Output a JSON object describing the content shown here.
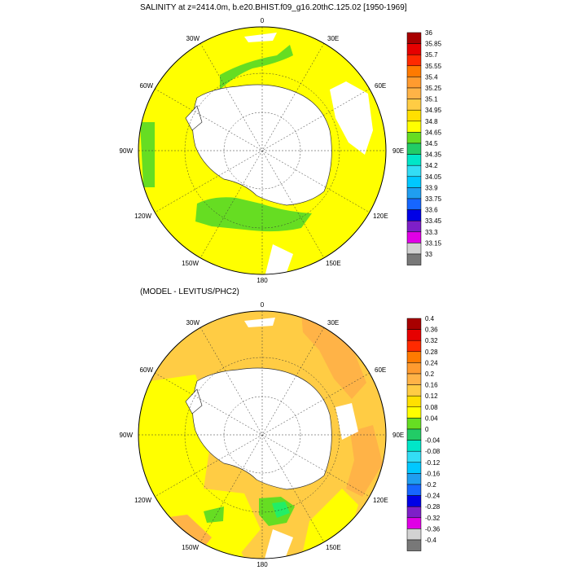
{
  "top_panel": {
    "title": "SALINITY at z=2414.0m, b.e20.BHIST.f09_g16.20thC.125.02 [1950-1969]",
    "lon_labels": [
      "0",
      "30E",
      "60E",
      "90E",
      "120E",
      "150E",
      "180",
      "150W",
      "120W",
      "90W",
      "60W",
      "30W"
    ],
    "colorbar_labels": [
      "36",
      "35.85",
      "35.7",
      "35.55",
      "35.4",
      "35.25",
      "35.1",
      "34.95",
      "34.8",
      "34.65",
      "34.5",
      "34.35",
      "34.2",
      "34.05",
      "33.9",
      "33.75",
      "33.6",
      "33.45",
      "33.3",
      "33.15",
      "33"
    ],
    "colorbar_colors": [
      "#a80000",
      "#e60000",
      "#ff2a00",
      "#ff7a00",
      "#ff9b2f",
      "#ffb347",
      "#ffcc44",
      "#ffe000",
      "#ffff00",
      "#66dd22",
      "#22cc66",
      "#00e6c8",
      "#33ddf5",
      "#00c8ff",
      "#1f9ef0",
      "#1666ff",
      "#0000e6",
      "#7e1fc8",
      "#e000e6",
      "#d2d2d2",
      "#787878"
    ]
  },
  "bottom_panel": {
    "title": "(MODEL - LEVITUS/PHC2)",
    "lon_labels": [
      "0",
      "30E",
      "60E",
      "90E",
      "120E",
      "150E",
      "180",
      "150W",
      "120W",
      "90W",
      "60W",
      "30W"
    ],
    "colorbar_labels": [
      "0.4",
      "0.36",
      "0.32",
      "0.28",
      "0.24",
      "0.2",
      "0.16",
      "0.12",
      "0.08",
      "0.04",
      "0",
      "-0.04",
      "-0.08",
      "-0.12",
      "-0.16",
      "-0.2",
      "-0.24",
      "-0.28",
      "-0.32",
      "-0.36",
      "-0.4"
    ],
    "colorbar_colors": [
      "#a80000",
      "#e60000",
      "#ff2a00",
      "#ff7a00",
      "#ff9b2f",
      "#ffb347",
      "#ffcc44",
      "#ffe000",
      "#ffff00",
      "#66dd22",
      "#22cc66",
      "#00e6c8",
      "#33ddf5",
      "#00c8ff",
      "#1f9ef0",
      "#1666ff",
      "#0000e6",
      "#7e1fc8",
      "#e000e6",
      "#d2d2d2",
      "#787878"
    ]
  },
  "map_colors": {
    "yellow": "#ffff00",
    "green": "#66dd22",
    "light_orange": "#ffcc44",
    "orange": "#ffb347",
    "land": "#ffffff",
    "cyan_green": "#22ee66"
  }
}
